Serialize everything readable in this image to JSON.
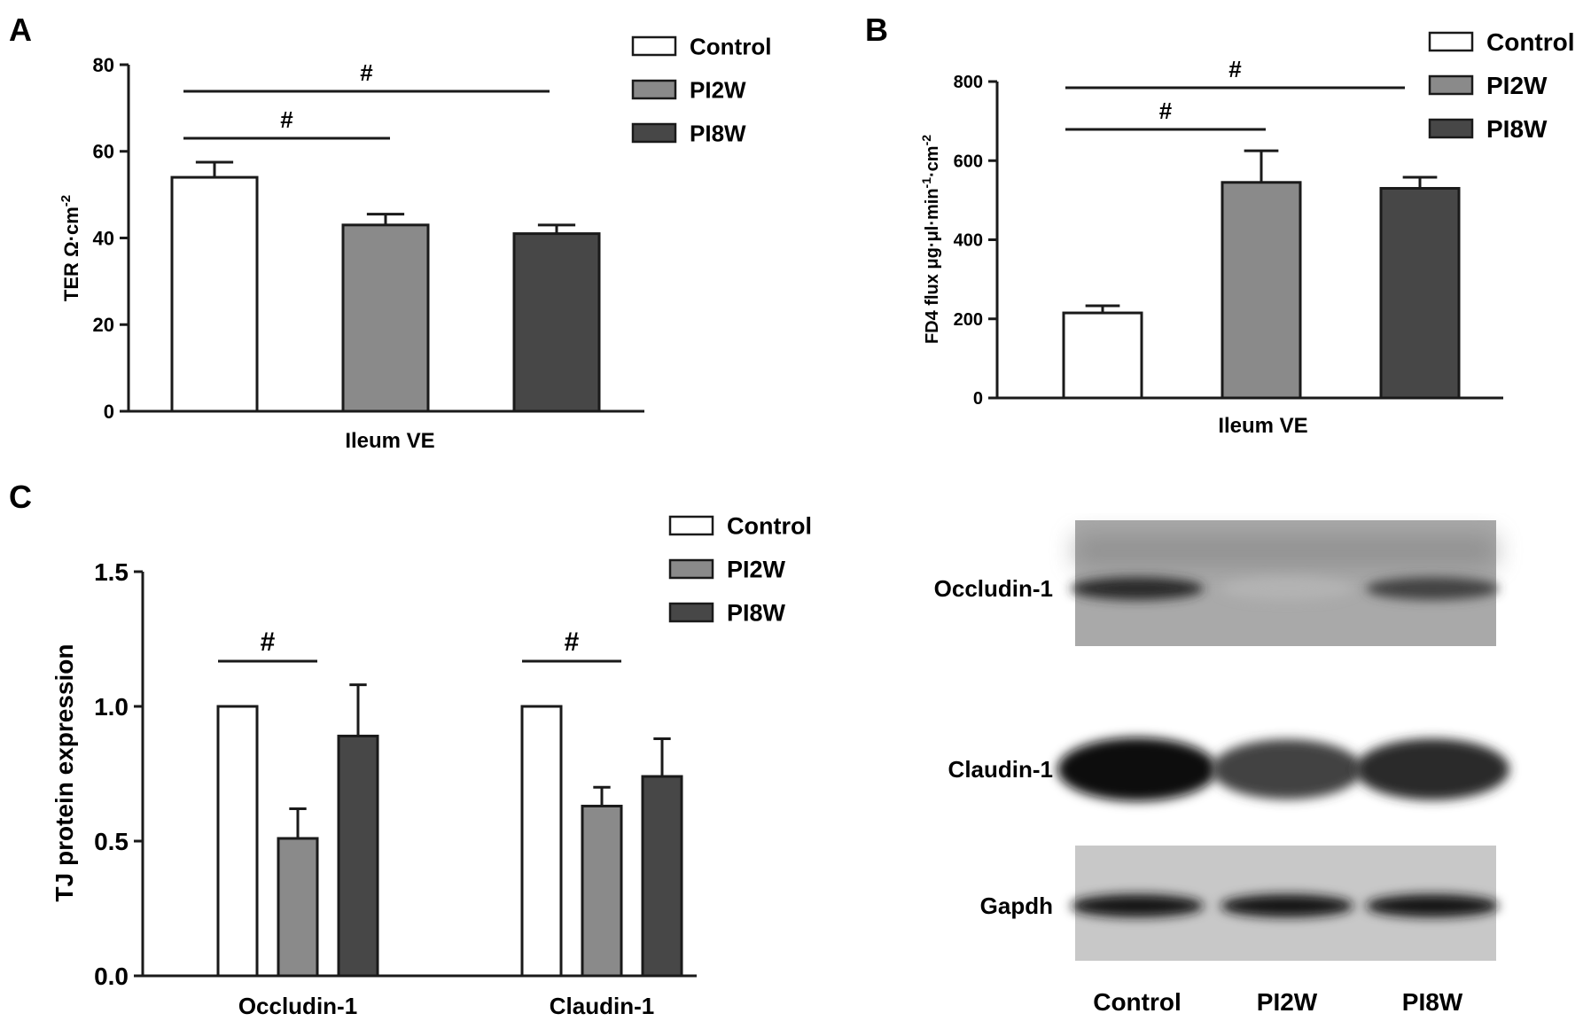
{
  "colors": {
    "Control": "#ffffff",
    "PI2W": "#8a8a8a",
    "PI8W": "#474747",
    "stroke": "#1a1a1a"
  },
  "chart_data": [
    {
      "panel": "A",
      "type": "bar",
      "categories": [
        "Control",
        "PI2W",
        "PI8W"
      ],
      "values": [
        54,
        43,
        41
      ],
      "errors": [
        3.5,
        2.5,
        2
      ],
      "xlabel": "Ileum VE",
      "ylabel": "TER Ω·cm",
      "ylabel_superscript": "-2",
      "ylim": [
        0,
        80
      ],
      "yticks": [
        "0",
        "20",
        "40",
        "60",
        "80"
      ],
      "legend": [
        "Control",
        "PI2W",
        "PI8W"
      ],
      "legend_position": "top-right",
      "significance": [
        {
          "from": "Control",
          "to": "PI2W",
          "label": "#"
        },
        {
          "from": "Control",
          "to": "PI8W",
          "label": "#"
        }
      ]
    },
    {
      "panel": "B",
      "type": "bar",
      "categories": [
        "Control",
        "PI2W",
        "PI8W"
      ],
      "values": [
        215,
        545,
        530
      ],
      "errors": [
        18,
        80,
        28
      ],
      "xlabel": "Ileum VE",
      "ylabel": "FD4 flux μg·μl·min",
      "ylabel_sup1": "-1",
      "ylabel_mid": "·cm",
      "ylabel_sup2": "-2",
      "ylim": [
        0,
        800
      ],
      "yticks": [
        "0",
        "200",
        "400",
        "600",
        "800"
      ],
      "legend": [
        "Control",
        "PI2W",
        "PI8W"
      ],
      "legend_position": "top-right",
      "significance": [
        {
          "from": "Control",
          "to": "PI2W",
          "label": "#"
        },
        {
          "from": "Control",
          "to": "PI8W",
          "label": "#"
        }
      ]
    },
    {
      "panel": "C",
      "type": "bar",
      "categories": [
        "Occludin-1",
        "Claudin-1"
      ],
      "series": [
        {
          "name": "Control",
          "values": [
            1.0,
            1.0
          ],
          "errors": [
            0,
            0
          ]
        },
        {
          "name": "PI2W",
          "values": [
            0.51,
            0.63
          ],
          "errors": [
            0.11,
            0.07
          ]
        },
        {
          "name": "PI8W",
          "values": [
            0.89,
            0.74
          ],
          "errors": [
            0.19,
            0.14
          ]
        }
      ],
      "xlabel": "",
      "ylabel": "TJ protein expression",
      "ylim": [
        0,
        1.5
      ],
      "yticks": [
        "0.0",
        "0.5",
        "1.0",
        "1.5"
      ],
      "legend": [
        "Control",
        "PI2W",
        "PI8W"
      ],
      "legend_position": "top-right",
      "significance": [
        {
          "group": "Occludin-1",
          "from": "Control",
          "to": "PI2W",
          "label": "#"
        },
        {
          "group": "Claudin-1",
          "from": "Control",
          "to": "PI2W",
          "label": "#"
        }
      ]
    }
  ],
  "panel_labels": [
    "A",
    "B",
    "C"
  ],
  "blot": {
    "rows": [
      "Occludin-1",
      "Claudin-1",
      "Gapdh"
    ],
    "lanes": [
      "Control",
      "PI2W",
      "PI8W"
    ],
    "band_intensity": {
      "Occludin-1": [
        0.85,
        0.25,
        0.75
      ],
      "Claudin-1": [
        1.0,
        0.75,
        0.85
      ],
      "Gapdh": [
        0.95,
        0.95,
        0.95
      ]
    }
  }
}
